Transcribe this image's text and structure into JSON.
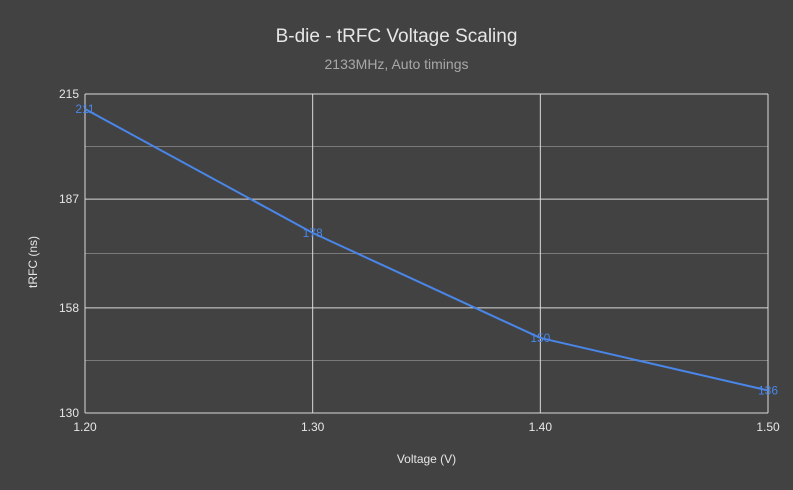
{
  "chart_data": {
    "type": "line",
    "title": "B-die - tRFC Voltage Scaling",
    "subtitle": "2133MHz, Auto timings",
    "xlabel": "Voltage (V)",
    "ylabel": "tRFC (ns)",
    "x": [
      1.2,
      1.3,
      1.4,
      1.5
    ],
    "series": [
      {
        "values": [
          211,
          178,
          150,
          136
        ],
        "data_labels": [
          "211",
          "178",
          "150",
          "136"
        ]
      }
    ],
    "x_ticks": [
      "1.20",
      "1.30",
      "1.40",
      "1.50"
    ],
    "y_ticks": [
      "130",
      "158",
      "187",
      "215"
    ],
    "xlim": [
      1.2,
      1.5
    ],
    "ylim": [
      130,
      215
    ],
    "grid": true,
    "colors": {
      "background": "#424242",
      "line": "#4a86e8",
      "grid_major": "#d9d9d9",
      "grid_minor": "#7a7a7a",
      "text": "#e6e6e6"
    }
  }
}
